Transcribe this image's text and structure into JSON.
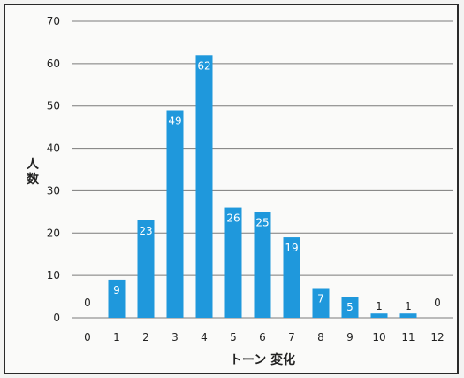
{
  "chart_data": {
    "type": "bar",
    "categories": [
      "0",
      "1",
      "2",
      "3",
      "4",
      "5",
      "6",
      "7",
      "8",
      "9",
      "10",
      "11",
      "12"
    ],
    "values": [
      0,
      9,
      23,
      49,
      62,
      26,
      25,
      19,
      7,
      5,
      1,
      1,
      0
    ],
    "data_labels": [
      "0",
      "9",
      "23",
      "49",
      "62",
      "26",
      "25",
      "19",
      "7",
      "5",
      "1",
      "1",
      "0"
    ],
    "xlabel": "トーン 変化",
    "ylabel": "人数",
    "ylabel_chars": [
      "人",
      "数"
    ],
    "ylim": [
      0,
      70
    ],
    "yticks": [
      "0",
      "10",
      "20",
      "30",
      "40",
      "50",
      "60",
      "70"
    ],
    "grid": true,
    "legend": "none",
    "colors": {
      "bar": "#1f98dc",
      "grid": "#7a7a7a",
      "label_inside": "#ffffff",
      "label_outside": "#222222"
    }
  }
}
